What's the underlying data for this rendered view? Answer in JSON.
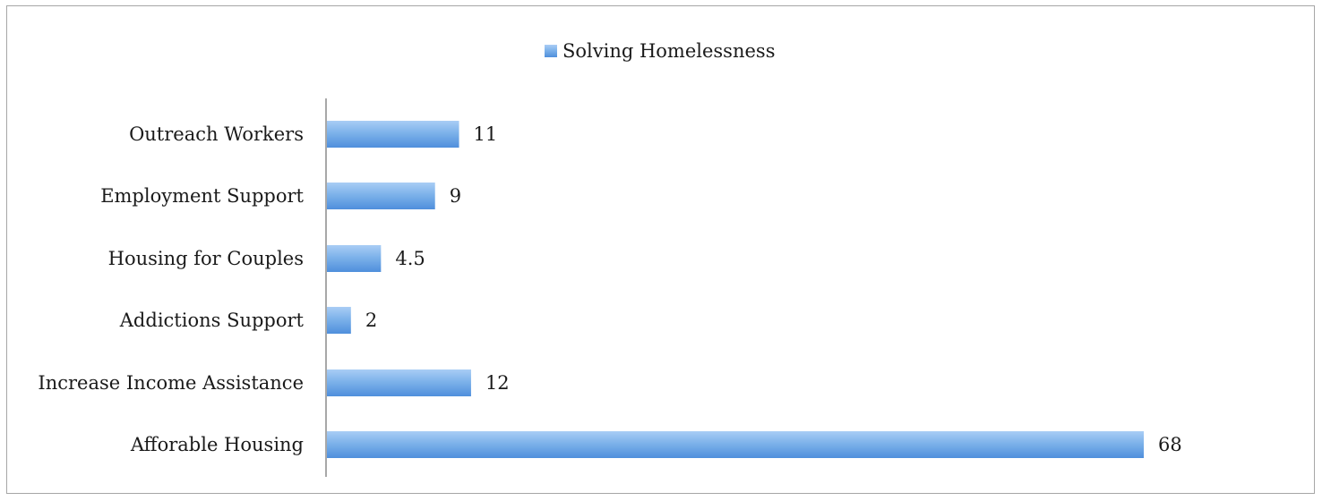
{
  "chart_data": {
    "type": "bar",
    "orientation": "horizontal",
    "categories": [
      "Outreach Workers",
      "Employment Support",
      "Housing for Couples",
      "Addictions Support",
      "Increase Income Assistance",
      "Afforable Housing"
    ],
    "series": [
      {
        "name": "Solving Homelessness",
        "values": [
          11,
          9,
          4.5,
          2,
          12,
          68
        ]
      }
    ],
    "value_labels": [
      "11",
      "9",
      "4.5",
      "2",
      "12",
      "68"
    ],
    "xlim": [
      0,
      70
    ],
    "grid": false,
    "legend_position": "top-center",
    "bar_color": "#6fa8e6"
  }
}
